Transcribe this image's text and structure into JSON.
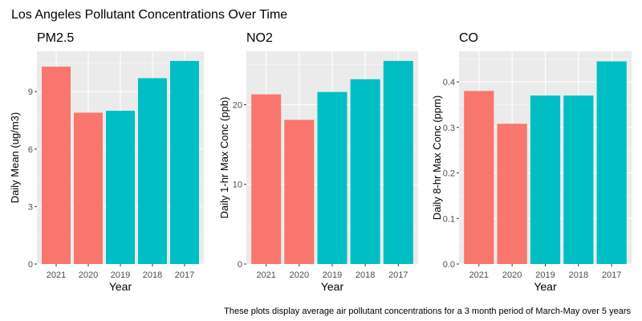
{
  "figure": {
    "title": "Los Angeles Pollutant Concentrations Over Time",
    "caption": "These plots display average air pollutant concentrations for a 3 month period of March-May over 5 years"
  },
  "colors": {
    "panel_bg": "#EBEBEB",
    "grid": "#FFFFFF",
    "series_recent": "#F8766D",
    "series_earlier": "#00BFC4",
    "text": "#000000",
    "tick_text": "#4D4D4D"
  },
  "chart_data": [
    {
      "type": "bar",
      "title": "PM2.5",
      "xlabel": "Year",
      "ylabel": "Daily Mean (ug/m3)",
      "categories": [
        "2021",
        "2020",
        "2019",
        "2018",
        "2017"
      ],
      "values": [
        10.3,
        7.9,
        8.0,
        9.7,
        10.6
      ],
      "bar_colors": [
        "#F8766D",
        "#F8766D",
        "#00BFC4",
        "#00BFC4",
        "#00BFC4"
      ],
      "ylim": [
        0,
        11.1
      ],
      "yticks": [
        0,
        3,
        6,
        9
      ],
      "ytick_labels": [
        "0",
        "3",
        "6",
        "9"
      ],
      "legend": "none",
      "grid": true
    },
    {
      "type": "bar",
      "title": "NO2",
      "xlabel": "Year",
      "ylabel": "Daily 1-hr Max Conc (ppb)",
      "categories": [
        "2021",
        "2020",
        "2019",
        "2018",
        "2017"
      ],
      "values": [
        21.3,
        18.1,
        21.6,
        23.2,
        25.5
      ],
      "bar_colors": [
        "#F8766D",
        "#F8766D",
        "#00BFC4",
        "#00BFC4",
        "#00BFC4"
      ],
      "ylim": [
        0,
        26.7
      ],
      "yticks": [
        0,
        10,
        20
      ],
      "ytick_labels": [
        "0",
        "10",
        "20"
      ],
      "legend": "none",
      "grid": true
    },
    {
      "type": "bar",
      "title": "CO",
      "xlabel": "Year",
      "ylabel": "Daily 8-hr Max Conc (ppm)",
      "categories": [
        "2021",
        "2020",
        "2019",
        "2018",
        "2017"
      ],
      "values": [
        0.38,
        0.308,
        0.37,
        0.37,
        0.445
      ],
      "bar_colors": [
        "#F8766D",
        "#F8766D",
        "#00BFC4",
        "#00BFC4",
        "#00BFC4"
      ],
      "ylim": [
        0,
        0.467
      ],
      "yticks": [
        0.0,
        0.1,
        0.2,
        0.3,
        0.4
      ],
      "ytick_labels": [
        "0.0",
        "0.1",
        "0.2",
        "0.3",
        "0.4"
      ],
      "legend": "none",
      "grid": true
    }
  ]
}
